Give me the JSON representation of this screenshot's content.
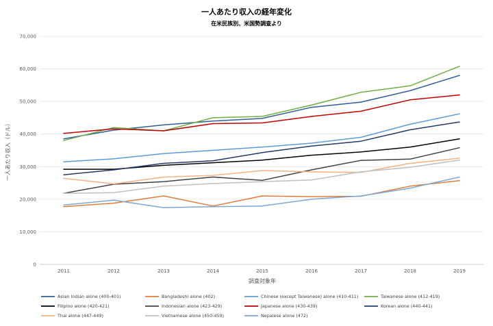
{
  "chart_data": {
    "type": "line",
    "title": "一人あたり収入の経年変化",
    "subtitle": "在米民族別、米国勢調査より",
    "xlabel": "調査対象年",
    "ylabel": "一人あたり収入（ドル）",
    "x": [
      2011,
      2012,
      2013,
      2014,
      2015,
      2016,
      2017,
      2018,
      2019
    ],
    "ylim": [
      0,
      70000
    ],
    "yticks": [
      0,
      10000,
      20000,
      30000,
      40000,
      50000,
      60000,
      70000
    ],
    "ytick_labels": [
      "0",
      "10,000",
      "20,000",
      "30,000",
      "40,000",
      "50,000",
      "60,000",
      "70,000"
    ],
    "grid": true,
    "legend": "bottom",
    "series": [
      {
        "name": "Asian Indian alone (400-401)",
        "color": "#2e5d97",
        "values": [
          38500,
          41200,
          42800,
          44000,
          44800,
          48200,
          49800,
          53300,
          58000
        ]
      },
      {
        "name": "Bangladeshi alone (402)",
        "color": "#e07b39",
        "values": [
          17700,
          18800,
          21000,
          17900,
          21000,
          20800,
          20900,
          24000,
          25700
        ]
      },
      {
        "name": "Chinese (except Taiwanese) alone (410-411)",
        "color": "#5b9bd5",
        "values": [
          31500,
          32400,
          34000,
          35000,
          36000,
          37200,
          39000,
          43000,
          46200
        ]
      },
      {
        "name": "Taiwanese alone (412-419)",
        "color": "#70ad47",
        "values": [
          38000,
          42000,
          41000,
          45000,
          45400,
          48900,
          52800,
          54800,
          60800
        ]
      },
      {
        "name": "Filipino alone (420-421)",
        "color": "#000000",
        "values": [
          29200,
          29200,
          30400,
          31200,
          32000,
          33500,
          34500,
          36000,
          38500
        ]
      },
      {
        "name": "Indonesian alone (423-429)",
        "color": "#404040",
        "values": [
          21800,
          24600,
          25400,
          26800,
          25800,
          29000,
          31900,
          32300,
          35800
        ]
      },
      {
        "name": "Japanese alone (430-439)",
        "color": "#c00000",
        "values": [
          40200,
          41600,
          41000,
          43200,
          43400,
          45400,
          47000,
          50500,
          52000
        ]
      },
      {
        "name": "Korean alone (440-441)",
        "color": "#1f3864",
        "values": [
          27500,
          29000,
          31000,
          31800,
          34300,
          36300,
          37800,
          41300,
          43700
        ]
      },
      {
        "name": "Thai alone (447-449)",
        "color": "#f4b183",
        "values": [
          26400,
          24700,
          26800,
          27300,
          28800,
          28400,
          28200,
          31000,
          32600
        ]
      },
      {
        "name": "Vietnamese alone (450-459)",
        "color": "#bfbfbf",
        "values": [
          21800,
          22000,
          24000,
          24800,
          25400,
          25900,
          28400,
          29800,
          32000
        ]
      },
      {
        "name": "Nepalese alone (472)",
        "color": "#7ba7d6",
        "values": [
          18200,
          19700,
          17400,
          17700,
          17900,
          20000,
          21000,
          23400,
          26800
        ]
      }
    ]
  }
}
